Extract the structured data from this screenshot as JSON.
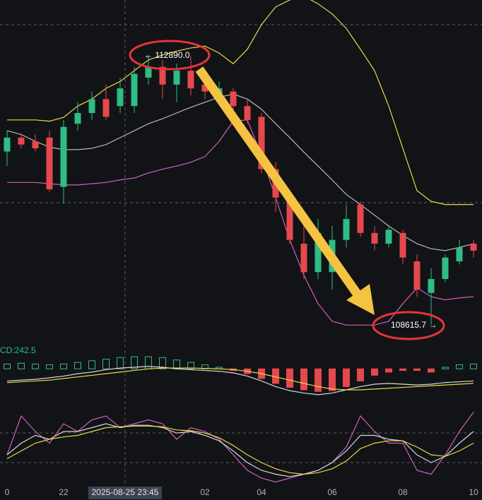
{
  "chart_data": [
    {
      "type": "candlestick",
      "categories": [
        "0",
        null,
        null,
        null,
        "22",
        null,
        null,
        null,
        null,
        null,
        null,
        null,
        null,
        null,
        "02",
        null,
        null,
        null,
        "04",
        null,
        null,
        null,
        null,
        "06",
        null,
        null,
        null,
        null,
        "08",
        null,
        null,
        null,
        null,
        "10"
      ],
      "open": [
        111360,
        111580,
        111520,
        111580,
        110800,
        111800,
        111970,
        112190,
        112080,
        112080,
        112530,
        112700,
        112420,
        112640,
        112420,
        112190,
        112310,
        112080,
        111910,
        111080,
        110630,
        109900,
        109450,
        109450,
        109960,
        110520,
        110070,
        109900,
        110070,
        109620,
        109120,
        109340,
        109620,
        109900
      ],
      "high": [
        111690,
        111630,
        111630,
        111690,
        111860,
        112140,
        112310,
        112420,
        112530,
        112700,
        112890,
        112810,
        112750,
        112870,
        112530,
        112470,
        112360,
        112190,
        111970,
        111190,
        110740,
        110400,
        110290,
        110180,
        110520,
        110570,
        110180,
        110180,
        110120,
        109730,
        109510,
        109730,
        109960,
        109960
      ],
      "low": [
        111130,
        111410,
        111360,
        110720,
        110540,
        111690,
        111860,
        111860,
        111970,
        111970,
        112420,
        112190,
        112140,
        112250,
        112190,
        112140,
        111970,
        111800,
        111020,
        110400,
        109900,
        109340,
        109340,
        109170,
        109840,
        110010,
        109790,
        109840,
        109570,
        109060,
        108615.7,
        109290,
        109570,
        109680
      ],
      "close": [
        111580,
        111470,
        111410,
        110760,
        111750,
        111970,
        112190,
        111910,
        112360,
        112590,
        112700,
        112420,
        112640,
        112360,
        112310,
        112360,
        112080,
        111860,
        111080,
        110630,
        109960,
        109450,
        110070,
        109960,
        110290,
        110070,
        109900,
        110120,
        109680,
        109170,
        109340,
        109680,
        109840,
        109790
      ],
      "up_color": "#2ebd85",
      "down_color": "#e5484d",
      "ylim": [
        108390,
        113760
      ],
      "bands": [
        {
          "color": "#e8d94a",
          "values": [
            111860,
            111860,
            111860,
            111840,
            111900,
            112080,
            112190,
            112360,
            112470,
            112640,
            112810,
            112890,
            112950,
            113000,
            113030,
            112920,
            112750,
            112980,
            113370,
            113650,
            113760,
            113820,
            113700,
            113540,
            113310,
            112980,
            112640,
            112080,
            111410,
            110740,
            110570,
            110520,
            110520,
            110520
          ]
        },
        {
          "color": "#b8b8b8",
          "values": [
            111690,
            111630,
            111520,
            111430,
            111390,
            111390,
            111410,
            111470,
            111580,
            111690,
            111800,
            111880,
            111970,
            112060,
            112140,
            112220,
            112270,
            112190,
            112030,
            111800,
            111580,
            111350,
            111130,
            110910,
            110680,
            110520,
            110350,
            110180,
            110030,
            109900,
            109820,
            109790,
            109840,
            109900
          ]
        },
        {
          "color": "#d05fc0",
          "values": [
            110870,
            110870,
            110870,
            110850,
            110830,
            110830,
            110850,
            110870,
            110910,
            110940,
            111020,
            111080,
            111130,
            111190,
            111280,
            111520,
            111840,
            111860,
            111300,
            110630,
            109960,
            109400,
            108950,
            108670,
            108610,
            108610,
            108610,
            108670,
            108950,
            109200,
            109060,
            109010,
            109040,
            109060
          ]
        }
      ],
      "annotations": [
        "← 112890.0",
        "108615.7 →"
      ],
      "crosshair_label": "2025-08-25 23:45"
    },
    {
      "type": "macd",
      "label": "CD:242.5",
      "ylim": [
        -400,
        300
      ],
      "histogram": [
        60,
        70,
        60,
        50,
        60,
        80,
        100,
        120,
        140,
        150,
        150,
        140,
        110,
        80,
        50,
        20,
        -20,
        -60,
        -120,
        -180,
        -230,
        -260,
        -280,
        -270,
        -220,
        -150,
        -80,
        -40,
        -20,
        -20,
        -40,
        20,
        50,
        60
      ],
      "lines": [
        {
          "color": "#d8d8d8",
          "values": [
            -150,
            -140,
            -130,
            -110,
            -90,
            -60,
            -40,
            -10,
            10,
            20,
            30,
            20,
            0,
            -10,
            -20,
            -30,
            -50,
            -90,
            -150,
            -220,
            -270,
            -300,
            -320,
            -300,
            -260,
            -220,
            -190,
            -180,
            -190,
            -200,
            -190,
            -170,
            -160,
            -150
          ]
        },
        {
          "color": "#e8d94a",
          "values": [
            -170,
            -160,
            -150,
            -140,
            -120,
            -100,
            -80,
            -60,
            -40,
            -20,
            0,
            10,
            10,
            10,
            5,
            0,
            -10,
            -30,
            -60,
            -100,
            -140,
            -180,
            -220,
            -250,
            -260,
            -260,
            -250,
            -240,
            -230,
            -220,
            -210,
            -200,
            -190,
            -180
          ]
        }
      ]
    },
    {
      "type": "kdj",
      "ylim": [
        0,
        100
      ],
      "lines": [
        {
          "color": "#d05fc0",
          "values": [
            40,
            90,
            70,
            55,
            80,
            70,
            85,
            90,
            75,
            80,
            85,
            80,
            60,
            75,
            70,
            60,
            40,
            20,
            10,
            5,
            10,
            15,
            20,
            30,
            50,
            90,
            70,
            55,
            55,
            20,
            15,
            40,
            70,
            95
          ]
        },
        {
          "color": "#d8d8d8",
          "values": [
            40,
            55,
            65,
            60,
            70,
            70,
            75,
            80,
            75,
            78,
            78,
            75,
            68,
            70,
            65,
            58,
            45,
            30,
            20,
            15,
            12,
            15,
            20,
            30,
            45,
            65,
            65,
            60,
            58,
            40,
            30,
            38,
            55,
            70
          ]
        },
        {
          "color": "#e8d94a",
          "values": [
            35,
            45,
            55,
            60,
            63,
            65,
            70,
            75,
            76,
            77,
            77,
            76,
            72,
            71,
            68,
            62,
            52,
            40,
            30,
            22,
            17,
            15,
            17,
            22,
            32,
            48,
            55,
            58,
            58,
            50,
            40,
            38,
            45,
            55
          ]
        }
      ]
    }
  ]
}
